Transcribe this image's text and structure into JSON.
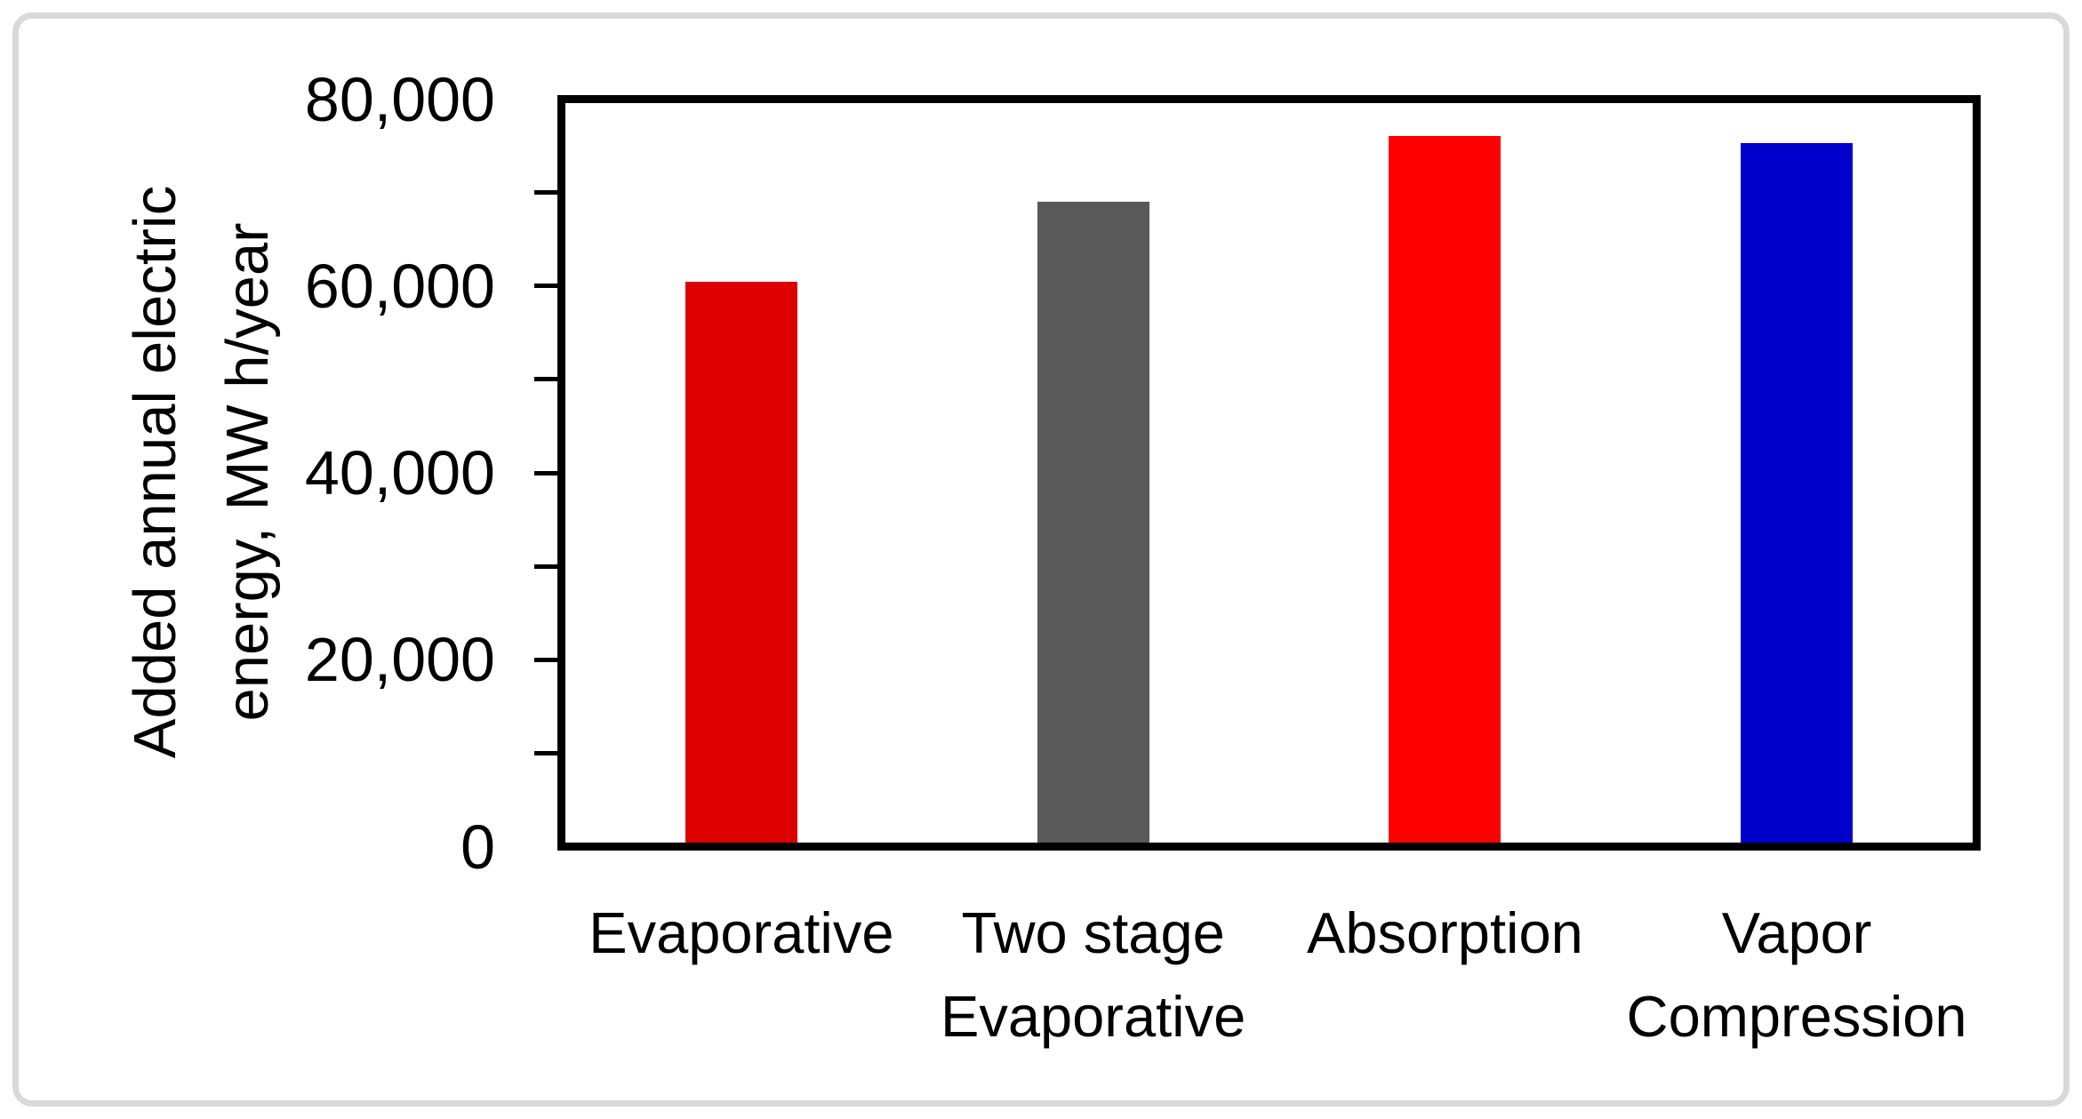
{
  "chart_data": {
    "type": "bar",
    "title": "",
    "categories": [
      "Evaporative",
      "Two stage\nEvaporative",
      "Absorption",
      "Vapor\nCompression"
    ],
    "values": [
      60500,
      69000,
      76100,
      75300
    ],
    "bar_colors": [
      "#DC0000",
      "#595959",
      "#FF0000",
      "#0000CC"
    ],
    "ylabel": "Added annual electric\nenergy, MW h/year",
    "xlabel": "",
    "ylim": [
      0,
      80000
    ],
    "ytick_major": 20000,
    "ytick_minor": 10000,
    "ytick_labels": [
      "80,000",
      "60,000",
      "40,000",
      "20,000",
      "0"
    ],
    "legend": "none",
    "grid": false
  },
  "style": {
    "background": "#FFFFFF",
    "frame_border_color": "#D9D9D9",
    "axis_color": "#000000",
    "text_color": "#000000"
  }
}
